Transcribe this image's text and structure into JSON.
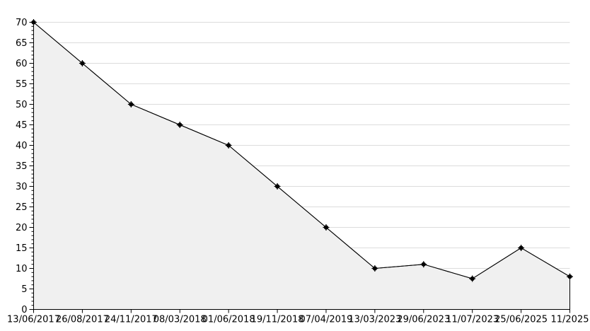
{
  "chart_data": {
    "type": "area",
    "title": "",
    "xlabel": "",
    "ylabel": "",
    "categories": [
      "13/06/2017",
      "26/08/2017",
      "24/11/2017",
      "08/03/2018",
      "01/06/2018",
      "19/11/2018",
      "07/04/2019",
      "13/03/2023",
      "29/06/2023",
      "11/07/2023",
      "25/06/2025",
      "11/2025"
    ],
    "values": [
      70,
      60,
      50,
      45,
      40,
      30,
      20,
      10,
      11,
      7.5,
      15,
      8
    ],
    "ylim": [
      0,
      70
    ],
    "y_tick_step": 5,
    "y_minor_tick_step": 1,
    "y_tick_labels": [
      "0",
      "5",
      "10",
      "15",
      "20",
      "25",
      "30",
      "35",
      "40",
      "45",
      "50",
      "55",
      "60",
      "65",
      "70"
    ],
    "grid": true,
    "legend": "none",
    "marker_style": "black-star-dot",
    "colors": {
      "line": "#000000",
      "marker": "#000000",
      "area_fill": "#f0f0f0",
      "grid": "#dcdcdc",
      "axis": "#000000",
      "text": "#000000",
      "background": "#ffffff"
    }
  }
}
